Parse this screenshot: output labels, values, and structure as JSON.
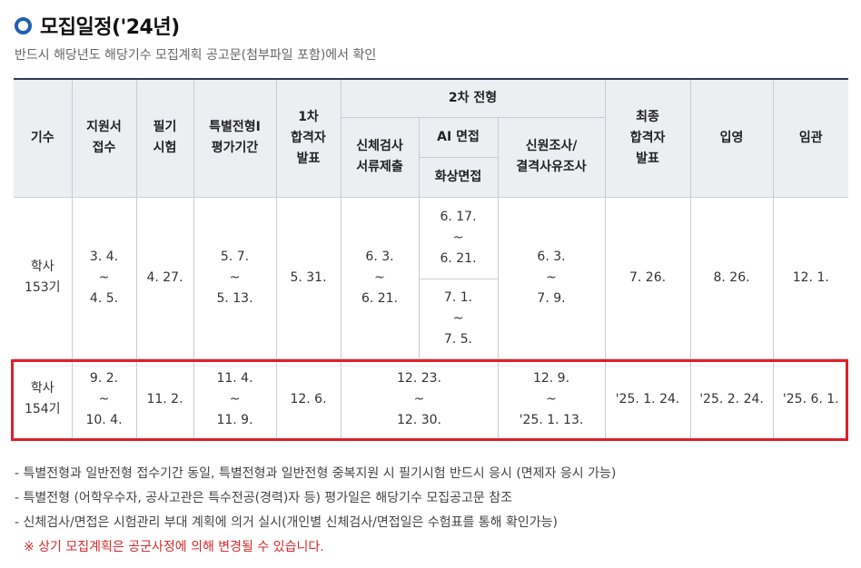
{
  "header": {
    "title": "모집일정('24년)",
    "subtitle": "반드시 해당년도 해당기수 모집계획 공고문(첨부파일 포함)에서 확인"
  },
  "table": {
    "headers": {
      "gisu": "기수",
      "apply": [
        "지원서",
        "접수"
      ],
      "written": [
        "필기",
        "시험"
      ],
      "special": [
        "특별전형I",
        "평가기간"
      ],
      "first_pass": [
        "1차",
        "합격자",
        "발표"
      ],
      "second": "2차 전형",
      "physical": [
        "신체검사",
        "서류제출"
      ],
      "ai_interview": "AI 면접",
      "video_interview": "화상면접",
      "background": [
        "신원조사/",
        "결격사유조사"
      ],
      "final_pass": [
        "최종",
        "합격자",
        "발표"
      ],
      "enlist": "입영",
      "commission": "임관"
    },
    "rows": [
      {
        "gisu": [
          "학사",
          "153기"
        ],
        "apply": [
          "3. 4.",
          "~",
          "4. 5."
        ],
        "written": "4. 27.",
        "special": [
          "5. 7.",
          "~",
          "5. 13."
        ],
        "first_pass": "5. 31.",
        "physical": [
          "6. 3.",
          "~",
          "6. 21."
        ],
        "ai_interview": [
          "6. 17.",
          "~",
          "6. 21."
        ],
        "video_interview": [
          "7. 1.",
          "~",
          "7. 5."
        ],
        "background": [
          "6. 3.",
          "~",
          "7. 9."
        ],
        "final_pass": "7. 26.",
        "enlist": "8. 26.",
        "commission": "12. 1."
      },
      {
        "gisu": [
          "학사",
          "154기"
        ],
        "apply": [
          "9. 2.",
          "~",
          "10. 4."
        ],
        "written": "11. 2.",
        "special": [
          "11. 4.",
          "~",
          "11. 9."
        ],
        "first_pass": "12. 6.",
        "physical_interview": [
          "12. 23.",
          "~",
          "12. 30."
        ],
        "background": [
          "12. 9.",
          "~",
          "'25. 1. 13."
        ],
        "final_pass": "'25. 1. 24.",
        "enlist": "'25. 2. 24.",
        "commission": "'25. 6. 1."
      }
    ]
  },
  "notes": [
    "- 특별전형과 일반전형 접수기간 동일, 특별전형과 일반전형 중복지원 시 필기시험 반드시 응시 (면제자 응시 가능)",
    "- 특별전형 (어학우수자, 공사고관은 특수전공(경력)자 등) 평가일은 해당기수 모집공고문 참조",
    "- 신체검사/면접은 시험관리 부대 계획에 의거 실시(개인별 신체검사/면접일은 수험표를 통해 확인가능)"
  ],
  "warning": "※ 상기 모집계획은 공군사정에 의해 변경될 수 있습니다.",
  "colors": {
    "accent": "#1f5fb4",
    "highlight": "#e0202a",
    "warning": "#d42a2a"
  }
}
